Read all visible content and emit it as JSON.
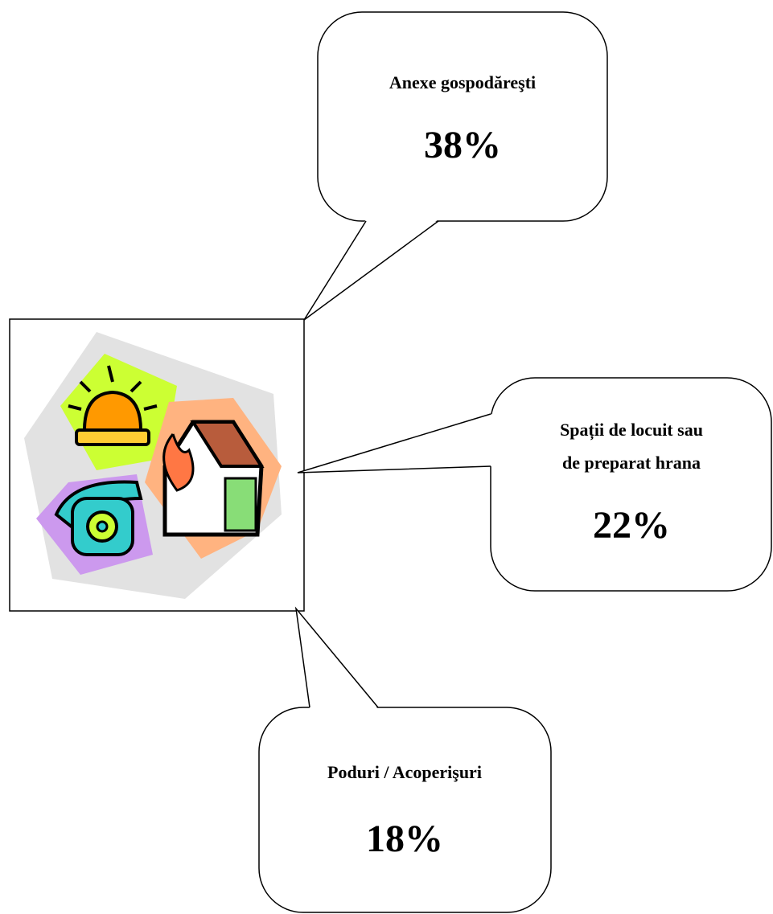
{
  "callouts": [
    {
      "title": [
        "Anexe gospodăreşti"
      ],
      "value": "38%"
    },
    {
      "title": [
        "Spații de locuit sau",
        "de preparat hrana"
      ],
      "value": "22%"
    },
    {
      "title": [
        "Poduri / Acoperişuri"
      ],
      "value": "18%"
    }
  ]
}
